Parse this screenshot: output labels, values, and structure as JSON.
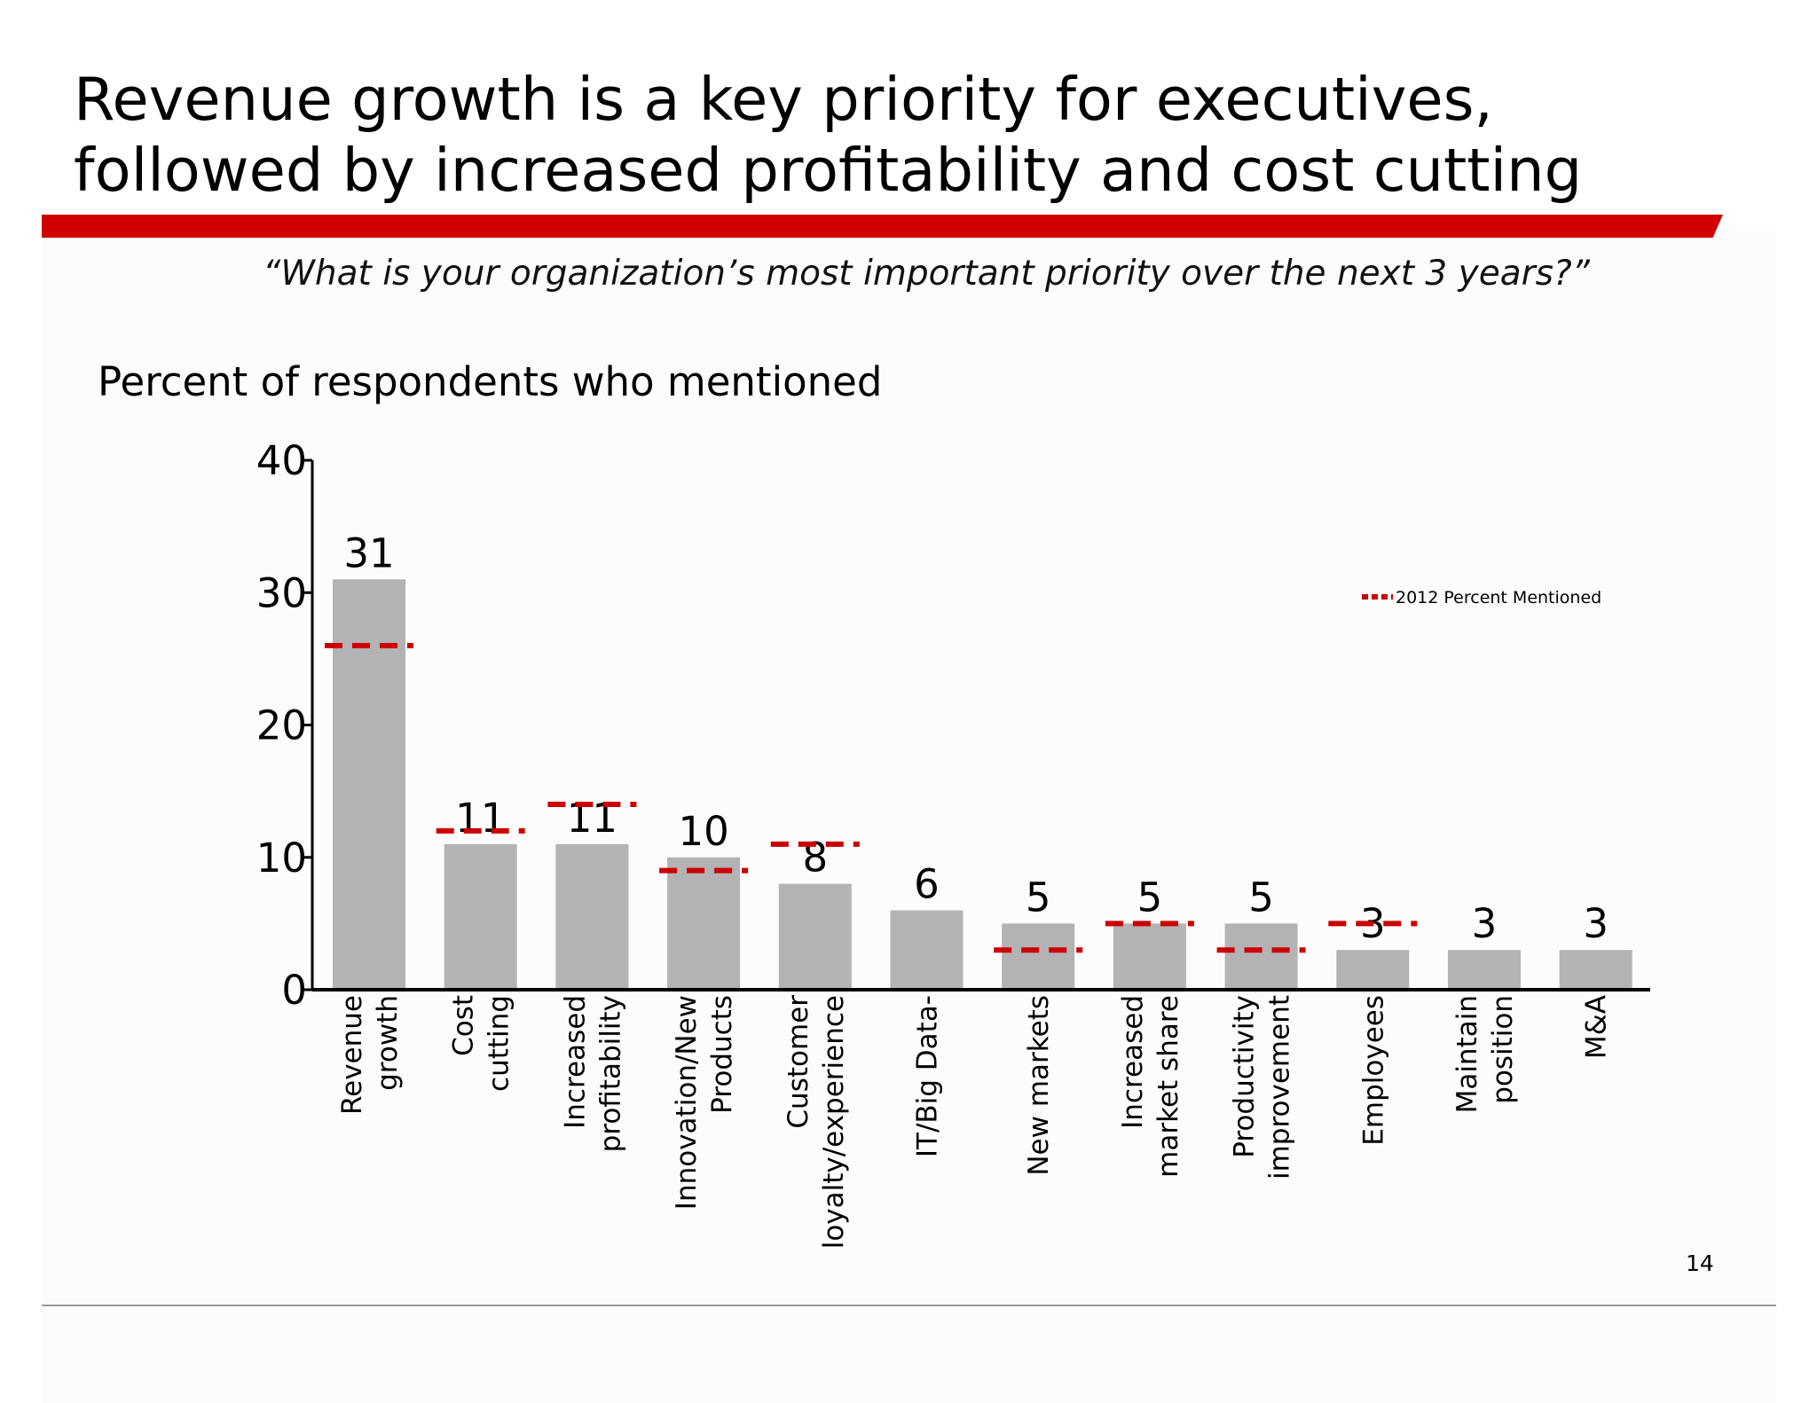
{
  "title": {
    "line1": "Revenue growth is a key priority for executives,",
    "line2": "followed by increased profitability and cost cutting"
  },
  "subtitle": "“What is your organization’s most important priority over the next 3 years?”",
  "chart_heading": "Percent of respondents who mentioned",
  "page_number": "14",
  "colors": {
    "accent": "#cc0000",
    "bar": "#b3b2b4",
    "axis": "#000000"
  },
  "chart_data": {
    "type": "bar",
    "title": "Percent of respondents who mentioned",
    "categories": [
      [
        "Revenue",
        "growth"
      ],
      [
        "Cost",
        "cutting"
      ],
      [
        "Increased",
        "profitability"
      ],
      [
        "Innovation/New",
        "Products"
      ],
      [
        "Customer",
        "loyalty/experience"
      ],
      [
        "IT/Big Data-"
      ],
      [
        "New markets"
      ],
      [
        "Increased",
        "market share"
      ],
      [
        "Productivity",
        "improvement"
      ],
      [
        "Employees"
      ],
      [
        "Maintain",
        "position"
      ],
      [
        "M&A"
      ]
    ],
    "series": [
      {
        "name": "",
        "values": [
          31,
          11,
          11,
          10,
          8,
          6,
          5,
          5,
          5,
          3,
          3,
          3
        ]
      },
      {
        "name": "2012 Percent Mentioned",
        "values": [
          26,
          12,
          14,
          9,
          11,
          null,
          3,
          5,
          3,
          5,
          null,
          null
        ]
      }
    ],
    "yticks": [
      0,
      10,
      20,
      30,
      40
    ],
    "ylim": [
      0,
      40
    ],
    "legend": {
      "label": "2012 Percent Mentioned",
      "position": "top-right"
    },
    "grid": false
  }
}
